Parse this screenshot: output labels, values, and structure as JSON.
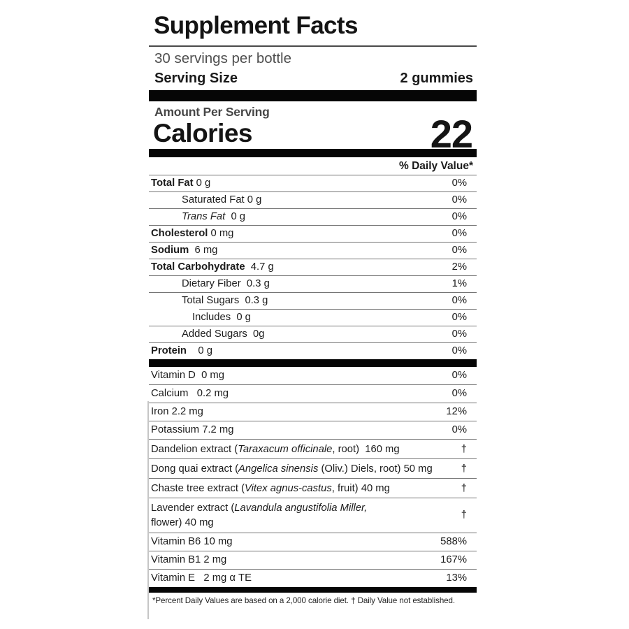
{
  "label": {
    "title": "Supplement Facts",
    "servings_per_container": "30 servings per bottle",
    "serving_size_label": "Serving Size",
    "serving_size_value": "2 gummies",
    "amount_per_serving": "Amount Per Serving",
    "calories_label": "Calories",
    "calories_value": "22",
    "daily_value_header": "% Daily Value*",
    "footnote": "*Percent Daily Values are based on a 2,000 calorie diet. † Daily Value not established.",
    "rows": [
      {
        "parts": [
          {
            "t": "Total Fat",
            "b": true
          },
          {
            "t": " 0 g"
          }
        ],
        "dv": "0%",
        "indent": 0
      },
      {
        "parts": [
          {
            "t": "Saturated Fat 0 g"
          }
        ],
        "dv": "0%",
        "indent": 1
      },
      {
        "parts": [
          {
            "t": "Trans Fat",
            "i": true
          },
          {
            "t": "  0 g"
          }
        ],
        "dv": "0%",
        "indent": 1
      },
      {
        "parts": [
          {
            "t": "Cholesterol",
            "b": true
          },
          {
            "t": " 0 mg"
          }
        ],
        "dv": "0%",
        "indent": 0
      },
      {
        "parts": [
          {
            "t": "Sodium",
            "b": true
          },
          {
            "t": "  6 mg"
          }
        ],
        "dv": "0%",
        "indent": 0
      },
      {
        "parts": [
          {
            "t": "Total Carbohydrate",
            "b": true
          },
          {
            "t": "  4.7 g"
          }
        ],
        "dv": "2%",
        "indent": 0
      },
      {
        "parts": [
          {
            "t": "Dietary Fiber  0.3 g"
          }
        ],
        "dv": "1%",
        "indent": 1
      },
      {
        "parts": [
          {
            "t": "Total Sugars  0.3 g"
          }
        ],
        "dv": "0%",
        "indent": 1,
        "sub_rule": true
      },
      {
        "parts": [
          {
            "t": "Includes  0 g"
          }
        ],
        "dv": "0%",
        "indent": 2
      },
      {
        "parts": [
          {
            "t": "Added Sugars  0g"
          }
        ],
        "dv": "0%",
        "indent": 1
      },
      {
        "parts": [
          {
            "t": "Protein",
            "b": true
          },
          {
            "t": "    0 g"
          }
        ],
        "dv": "0%",
        "indent": 0,
        "bar_after": true
      },
      {
        "parts": [
          {
            "t": "Vitamin D  0 mg"
          }
        ],
        "dv": "0%",
        "indent": 0
      },
      {
        "parts": [
          {
            "t": "Calcium   0.2 mg"
          }
        ],
        "dv": "0%",
        "indent": 0
      },
      {
        "parts": [
          {
            "t": "Iron 2.2 mg"
          }
        ],
        "dv": "12%",
        "indent": 0
      },
      {
        "parts": [
          {
            "t": "Potassium 7.2 mg"
          }
        ],
        "dv": "0%",
        "indent": 0
      },
      {
        "parts": [
          {
            "t": "Dandelion extract ("
          },
          {
            "t": "Taraxacum officinale",
            "i": true
          },
          {
            "t": ", root)  160 mg"
          }
        ],
        "dv": "†",
        "indent": 0
      },
      {
        "parts": [
          {
            "t": "Dong quai extract ("
          },
          {
            "t": "Angelica sinensis",
            "i": true
          },
          {
            "t": " (Oliv.) Diels, root) 50 mg"
          }
        ],
        "dv": "†",
        "indent": 0
      },
      {
        "parts": [
          {
            "t": "Chaste tree extract ("
          },
          {
            "t": "Vitex agnus-castus",
            "i": true
          },
          {
            "t": ", fruit) 40 mg"
          }
        ],
        "dv": "†",
        "indent": 0
      },
      {
        "parts": [
          {
            "t": "Lavender extract ("
          },
          {
            "t": "Lavandula angustifolia Miller,",
            "i": true
          },
          {
            "t": "\nflower) 40 mg"
          }
        ],
        "dv": "†",
        "indent": 0
      },
      {
        "parts": [
          {
            "t": "Vitamin B6 10 mg"
          }
        ],
        "dv": "588%",
        "indent": 0
      },
      {
        "parts": [
          {
            "t": "Vitamin B1 2 mg"
          }
        ],
        "dv": "167%",
        "indent": 0
      },
      {
        "parts": [
          {
            "t": "Vitamin E   2 mg α TE"
          }
        ],
        "dv": "13%",
        "indent": 0,
        "bar_after": true
      }
    ]
  }
}
